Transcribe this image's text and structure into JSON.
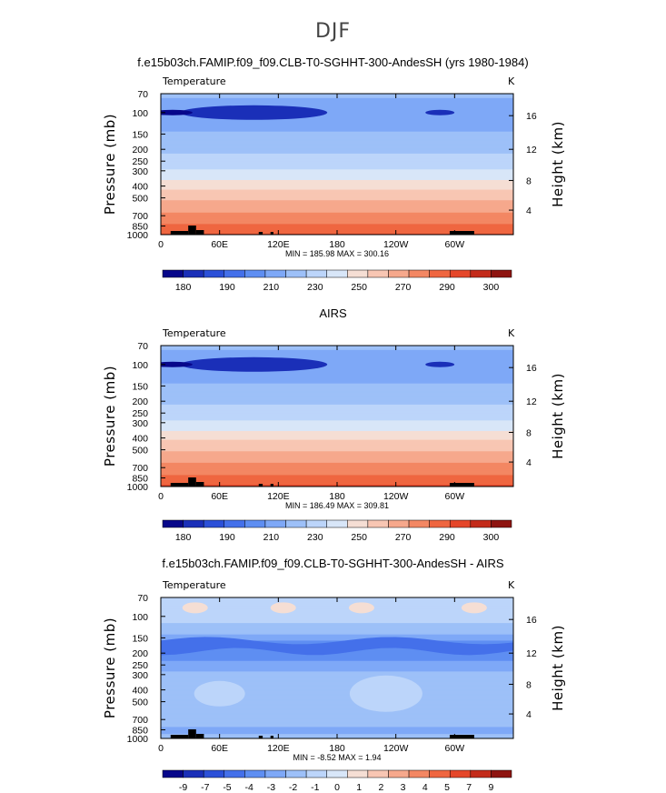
{
  "figure": {
    "suptitle": "DJF"
  },
  "chart_data": [
    {
      "type": "heatmap",
      "title": "f.e15b03ch.FAMIP.f09_f09.CLB-T0-SGHHT-300-AndesSH (yrs 1980-1984)",
      "subtitle_left": "Temperature",
      "subtitle_right": "K",
      "xlabel": "",
      "ylabel": "Pressure (mb)",
      "ylabel_right": "Height (km)",
      "x_ticks": [
        "0",
        "60E",
        "120E",
        "180",
        "120W",
        "60W"
      ],
      "x_tick_values": [
        0,
        60,
        120,
        180,
        240,
        300
      ],
      "xlim": [
        0,
        360
      ],
      "y_ticks": [
        "70",
        "100",
        "150",
        "200",
        "250",
        "300",
        "400",
        "500",
        "700",
        "850",
        "1000"
      ],
      "y_tick_values": [
        70,
        100,
        150,
        200,
        250,
        300,
        400,
        500,
        700,
        850,
        1000
      ],
      "ylim": [
        70,
        1000
      ],
      "y_scale": "log",
      "right_ticks": [
        "4",
        "8",
        "12",
        "16"
      ],
      "right_tick_values": [
        4,
        8,
        12,
        16
      ],
      "min_text": "MIN = 185.98",
      "max_text": "MAX = 300.16",
      "colorbar_labels": [
        "180",
        "190",
        "210",
        "230",
        "250",
        "270",
        "290",
        "300"
      ],
      "colorbar_colors": [
        "#07078a",
        "#1a2fb8",
        "#2b50d8",
        "#4470ea",
        "#5e8ef2",
        "#7ea8f7",
        "#9dc0f8",
        "#bcd5fa",
        "#d8e6f8",
        "#f5ded4",
        "#f8c6b3",
        "#f6a88c",
        "#f38763",
        "#ef6640",
        "#e5472a",
        "#c32b1a",
        "#8e1410"
      ],
      "profile": [
        [
          70,
          212
        ],
        [
          100,
          201
        ],
        [
          130,
          206
        ],
        [
          150,
          212
        ],
        [
          200,
          218
        ],
        [
          250,
          224
        ],
        [
          300,
          231
        ],
        [
          350,
          239
        ],
        [
          400,
          247
        ],
        [
          450,
          253
        ],
        [
          500,
          258
        ],
        [
          600,
          266
        ],
        [
          700,
          273
        ],
        [
          800,
          279
        ],
        [
          850,
          282
        ],
        [
          925,
          287
        ],
        [
          1000,
          291
        ]
      ]
    },
    {
      "type": "heatmap",
      "title": "AIRS",
      "subtitle_left": "Temperature",
      "subtitle_right": "K",
      "xlabel": "",
      "ylabel": "Pressure (mb)",
      "ylabel_right": "Height (km)",
      "x_ticks": [
        "0",
        "60E",
        "120E",
        "180",
        "120W",
        "60W"
      ],
      "x_tick_values": [
        0,
        60,
        120,
        180,
        240,
        300
      ],
      "xlim": [
        0,
        360
      ],
      "y_ticks": [
        "70",
        "100",
        "150",
        "200",
        "250",
        "300",
        "400",
        "500",
        "700",
        "850",
        "1000"
      ],
      "y_tick_values": [
        70,
        100,
        150,
        200,
        250,
        300,
        400,
        500,
        700,
        850,
        1000
      ],
      "ylim": [
        70,
        1000
      ],
      "y_scale": "log",
      "right_ticks": [
        "4",
        "8",
        "12",
        "16"
      ],
      "right_tick_values": [
        4,
        8,
        12,
        16
      ],
      "min_text": "MIN = 186.49",
      "max_text": "MAX = 309.81",
      "colorbar_labels": [
        "180",
        "190",
        "210",
        "230",
        "250",
        "270",
        "290",
        "300"
      ],
      "colorbar_colors": [
        "#07078a",
        "#1a2fb8",
        "#2b50d8",
        "#4470ea",
        "#5e8ef2",
        "#7ea8f7",
        "#9dc0f8",
        "#bcd5fa",
        "#d8e6f8",
        "#f5ded4",
        "#f8c6b3",
        "#f6a88c",
        "#f38763",
        "#ef6640",
        "#e5472a",
        "#c32b1a",
        "#8e1410"
      ],
      "profile": [
        [
          70,
          212
        ],
        [
          100,
          202
        ],
        [
          130,
          207
        ],
        [
          150,
          212
        ],
        [
          200,
          218
        ],
        [
          250,
          225
        ],
        [
          300,
          232
        ],
        [
          350,
          240
        ],
        [
          400,
          248
        ],
        [
          450,
          254
        ],
        [
          500,
          259
        ],
        [
          600,
          267
        ],
        [
          700,
          274
        ],
        [
          800,
          280
        ],
        [
          850,
          283
        ],
        [
          925,
          288
        ],
        [
          1000,
          292
        ]
      ]
    },
    {
      "type": "heatmap",
      "title": "f.e15b03ch.FAMIP.f09_f09.CLB-T0-SGHHT-300-AndesSH - AIRS",
      "subtitle_left": "Temperature",
      "subtitle_right": "K",
      "xlabel": "",
      "ylabel": "Pressure (mb)",
      "ylabel_right": "Height (km)",
      "x_ticks": [
        "0",
        "60E",
        "120E",
        "180",
        "120W",
        "60W"
      ],
      "x_tick_values": [
        0,
        60,
        120,
        180,
        240,
        300
      ],
      "xlim": [
        0,
        360
      ],
      "y_ticks": [
        "70",
        "100",
        "150",
        "200",
        "250",
        "300",
        "400",
        "500",
        "700",
        "850",
        "1000"
      ],
      "y_tick_values": [
        70,
        100,
        150,
        200,
        250,
        300,
        400,
        500,
        700,
        850,
        1000
      ],
      "ylim": [
        70,
        1000
      ],
      "y_scale": "log",
      "right_ticks": [
        "4",
        "8",
        "12",
        "16"
      ],
      "right_tick_values": [
        4,
        8,
        12,
        16
      ],
      "min_text": "MIN = -8.52",
      "max_text": "MAX = 1.94",
      "colorbar_labels": [
        "-9",
        "-7",
        "-5",
        "-4",
        "-3",
        "-2",
        "-1",
        "0",
        "1",
        "2",
        "3",
        "4",
        "5",
        "7",
        "9"
      ],
      "colorbar_colors": [
        "#07078a",
        "#1a2fb8",
        "#2b50d8",
        "#4470ea",
        "#5e8ef2",
        "#7ea8f7",
        "#9dc0f8",
        "#bcd5fa",
        "#d8e6f8",
        "#f5ded4",
        "#f8c6b3",
        "#f6a88c",
        "#f38763",
        "#ef6640",
        "#e5472a",
        "#c32b1a",
        "#8e1410"
      ],
      "profile": [
        [
          70,
          -0.8
        ],
        [
          100,
          -0.6
        ],
        [
          130,
          -1.5
        ],
        [
          150,
          -2.5
        ],
        [
          175,
          -4.0
        ],
        [
          200,
          -3.6
        ],
        [
          250,
          -2.6
        ],
        [
          300,
          -1.7
        ],
        [
          400,
          -1.3
        ],
        [
          500,
          -1.0
        ],
        [
          600,
          -1.2
        ],
        [
          700,
          -1.6
        ],
        [
          800,
          -2.0
        ],
        [
          850,
          -2.3
        ],
        [
          925,
          -2.0
        ],
        [
          1000,
          -1.6
        ]
      ]
    }
  ]
}
